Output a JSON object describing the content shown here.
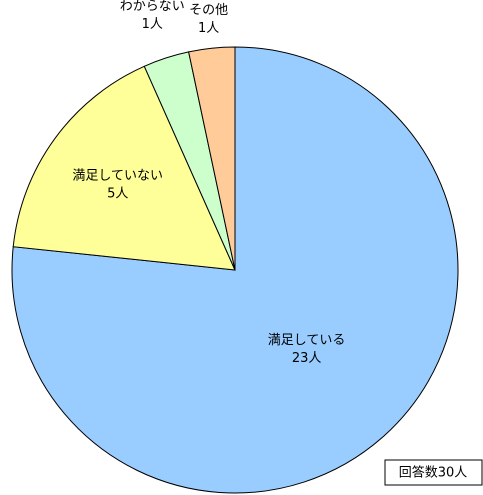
{
  "chart_data": {
    "type": "pie",
    "categories": [
      "満足している",
      "満足していない",
      "わからない",
      "その他"
    ],
    "values": [
      23,
      5,
      1,
      1
    ],
    "value_labels": [
      "23人",
      "5人",
      "1人",
      "1人"
    ],
    "colors": [
      "#99ccff",
      "#ffff99",
      "#ccffcc",
      "#ffcc99"
    ],
    "annotation": "回答数30人"
  }
}
